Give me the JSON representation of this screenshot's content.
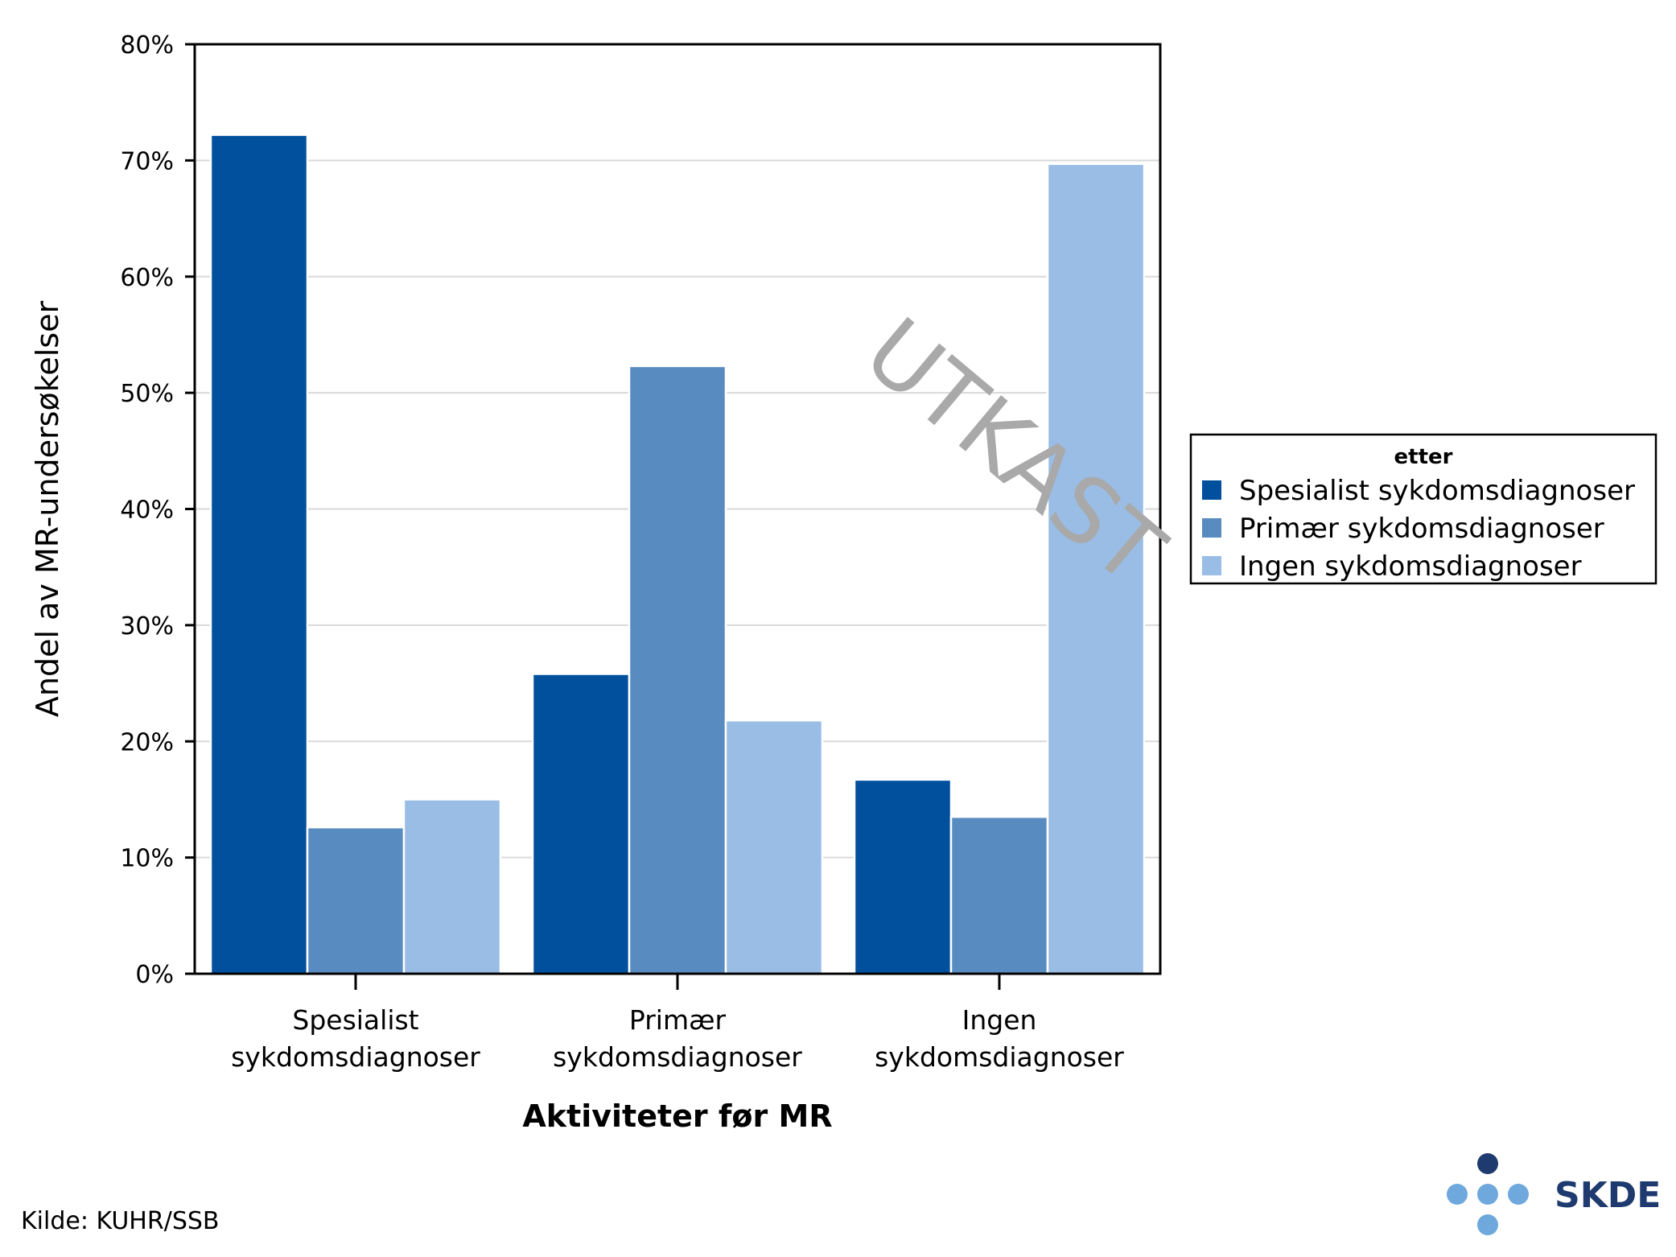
{
  "chart_data": {
    "type": "bar",
    "title": "",
    "xlabel": "Aktiviteter før MR",
    "ylabel": "Andel av MR-undersøkelser",
    "ylim": [
      0,
      80
    ],
    "yticks": [
      "0%",
      "10%",
      "20%",
      "30%",
      "40%",
      "50%",
      "60%",
      "70%",
      "80%"
    ],
    "grid": "horizontal",
    "categories": [
      [
        "Spesialist",
        "sykdomsdiagnoser"
      ],
      [
        "Primær",
        "sykdomsdiagnoser"
      ],
      [
        "Ingen",
        "sykdomsdiagnoser"
      ]
    ],
    "legend": {
      "title": "etter",
      "placement": "right"
    },
    "series": [
      {
        "name": "Spesialist sykdomsdiagnoser",
        "color": "#00509e",
        "values": [
          72.2,
          25.8,
          16.7
        ]
      },
      {
        "name": "Primær sykdomsdiagnoser",
        "color": "#588cc0",
        "values": [
          12.6,
          52.3,
          13.5
        ]
      },
      {
        "name": "Ingen sykdomsdiagnoser",
        "color": "#99bde5",
        "values": [
          15.0,
          21.8,
          69.7
        ]
      }
    ]
  },
  "watermark": "UTKAST",
  "source": "Kilde: KUHR/SSB",
  "logo": {
    "text": "SKDE",
    "color_dark": "#1e3a6e",
    "color_light": "#6ea8dc"
  }
}
